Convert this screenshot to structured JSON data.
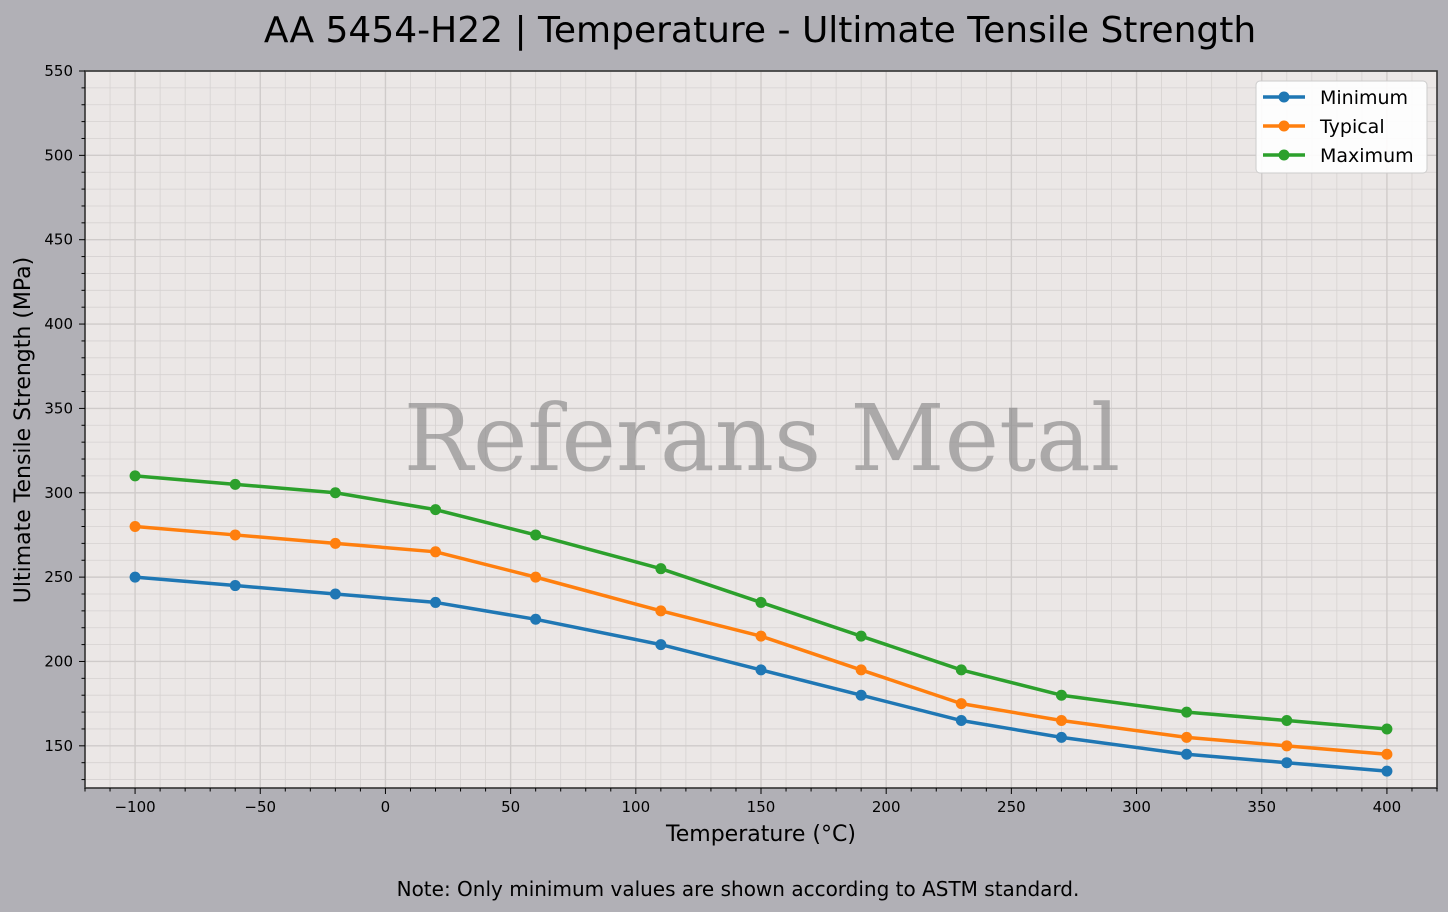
{
  "title": "AA 5454-H22 | Temperature - Ultimate Tensile Strength",
  "note": "Note: Only minimum values are shown according to ASTM standard.",
  "watermark": "Referans Metal",
  "colors": {
    "background": "#b1b0b6",
    "plot_bg": "#ebe7e6",
    "minimum": "#1f77b4",
    "typical": "#ff7f0e",
    "maximum": "#2ca02c"
  },
  "chart_data": {
    "type": "line",
    "title": "AA 5454-H22 | Temperature - Ultimate Tensile Strength",
    "xlabel": "Temperature (°C)",
    "ylabel": "Ultimate Tensile Strength (MPa)",
    "x": [
      -100,
      -60,
      -20,
      20,
      60,
      110,
      150,
      190,
      230,
      270,
      320,
      360,
      400
    ],
    "series": [
      {
        "name": "Minimum",
        "color": "#1f77b4",
        "values": [
          250,
          245,
          240,
          235,
          225,
          210,
          195,
          180,
          165,
          155,
          145,
          140,
          135
        ]
      },
      {
        "name": "Typical",
        "color": "#ff7f0e",
        "values": [
          280,
          275,
          270,
          265,
          250,
          230,
          215,
          195,
          175,
          165,
          155,
          150,
          145
        ]
      },
      {
        "name": "Maximum",
        "color": "#2ca02c",
        "values": [
          310,
          305,
          300,
          290,
          275,
          255,
          235,
          215,
          195,
          180,
          170,
          165,
          160
        ]
      }
    ],
    "xlim": [
      -120,
      420
    ],
    "ylim": [
      125,
      550
    ],
    "xticks": [
      -100,
      -50,
      0,
      50,
      100,
      150,
      200,
      250,
      300,
      350,
      400
    ],
    "xtick_labels": [
      "−100",
      "−50",
      "0",
      "50",
      "100",
      "150",
      "200",
      "250",
      "300",
      "350",
      "400"
    ],
    "yticks": [
      150,
      200,
      250,
      300,
      350,
      400,
      450,
      500,
      550
    ],
    "ytick_labels": [
      "150",
      "200",
      "250",
      "300",
      "350",
      "400",
      "450",
      "500",
      "550"
    ],
    "grid": true,
    "minor_grid": true,
    "legend_position": "upper right",
    "annotations": [
      "Referans Metal",
      "Note: Only minimum values are shown according to ASTM standard."
    ]
  }
}
